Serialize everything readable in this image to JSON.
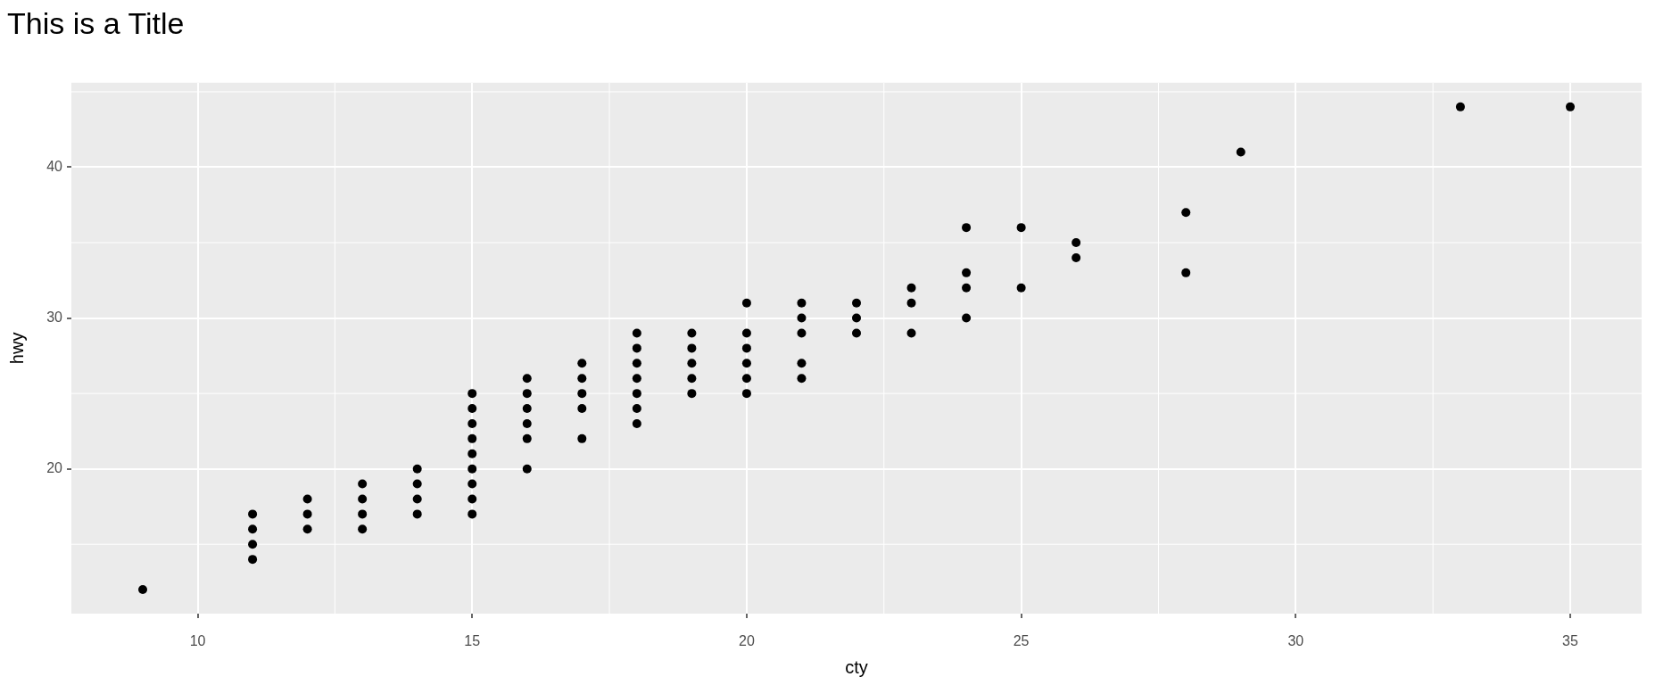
{
  "chart_data": {
    "type": "scatter",
    "title": "This is a Title",
    "xlabel": "cty",
    "ylabel": "hwy",
    "x": [
      9,
      11,
      11,
      11,
      11,
      12,
      12,
      12,
      13,
      13,
      13,
      13,
      14,
      14,
      14,
      14,
      15,
      15,
      15,
      15,
      15,
      15,
      15,
      15,
      15,
      16,
      16,
      16,
      16,
      16,
      16,
      17,
      17,
      17,
      17,
      17,
      18,
      18,
      18,
      18,
      18,
      18,
      18,
      19,
      19,
      19,
      19,
      19,
      20,
      20,
      20,
      20,
      20,
      20,
      21,
      21,
      21,
      21,
      21,
      22,
      22,
      22,
      23,
      23,
      23,
      24,
      24,
      24,
      24,
      25,
      25,
      26,
      26,
      28,
      28,
      29,
      33,
      35
    ],
    "values": [
      12,
      14,
      15,
      16,
      17,
      16,
      17,
      18,
      16,
      17,
      18,
      19,
      17,
      18,
      19,
      20,
      17,
      18,
      19,
      20,
      21,
      22,
      23,
      24,
      25,
      20,
      22,
      23,
      24,
      25,
      26,
      22,
      24,
      25,
      26,
      27,
      23,
      24,
      25,
      26,
      27,
      28,
      29,
      25,
      26,
      27,
      28,
      29,
      25,
      26,
      27,
      28,
      29,
      31,
      26,
      27,
      29,
      30,
      31,
      29,
      30,
      31,
      29,
      31,
      32,
      30,
      32,
      33,
      36,
      32,
      36,
      34,
      35,
      33,
      37,
      41,
      44,
      44
    ],
    "color": "#000000",
    "marker": "circle",
    "xlim": [
      7.7,
      36.3
    ],
    "ylim": [
      10.4,
      45.6
    ],
    "xticks": [
      10,
      15,
      20,
      25,
      30,
      35
    ],
    "yticks": [
      20,
      30,
      40
    ],
    "grid": true
  }
}
